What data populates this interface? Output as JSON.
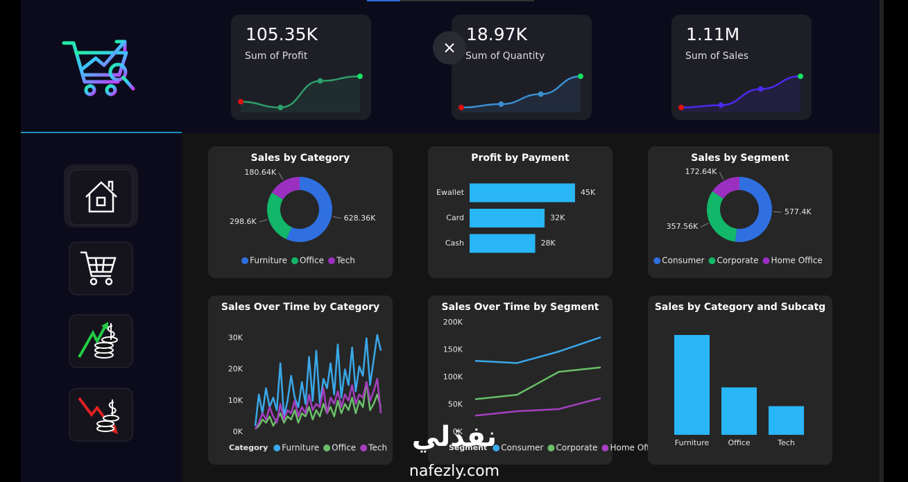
{
  "kpis": [
    {
      "value": "105.35K",
      "label": "Sum of Profit",
      "color": "#2e9e6a",
      "trend": [
        2.4,
        1.9,
        4.2,
        4.6
      ]
    },
    {
      "value": "18.97K",
      "label": "Sum of Quantity",
      "color": "#3a8fd0",
      "trend": [
        1,
        1.3,
        2.2,
        3.8
      ]
    },
    {
      "value": "1.11M",
      "label": "Sum of Sales",
      "color": "#4a2af0",
      "trend": [
        1,
        1.2,
        2.6,
        3.7
      ]
    }
  ],
  "chart_data": [
    {
      "type": "donut",
      "title": "Sales by Category",
      "categories": [
        "Furniture",
        "Office",
        "Tech"
      ],
      "values": [
        628360,
        298600,
        180640
      ],
      "value_labels": [
        "628.36K",
        "298.6K",
        "180.64K"
      ],
      "colors": [
        "#2f6fe0",
        "#12b76a",
        "#9b30c0"
      ]
    },
    {
      "type": "bar",
      "horizontal": true,
      "title": "Profit by Payment",
      "categories": [
        "Ewallet",
        "Card",
        "Cash"
      ],
      "values": [
        45000,
        32000,
        28000
      ],
      "value_labels": [
        "45K",
        "32K",
        "28K"
      ],
      "color": "#29b6f6"
    },
    {
      "type": "donut",
      "title": "Sales by Segment",
      "categories": [
        "Consumer",
        "Corporate",
        "Home Office"
      ],
      "values": [
        577400,
        357560,
        172640
      ],
      "value_labels": [
        "577.4K",
        "357.56K",
        "172.64K"
      ],
      "colors": [
        "#2f6fe0",
        "#12b76a",
        "#9b30c0"
      ]
    },
    {
      "type": "line",
      "title": "Sales Over Time by Category",
      "legend_title": "Category",
      "ylim": [
        0,
        35000
      ],
      "yticks": [
        {
          "value": 0,
          "label": "0K"
        },
        {
          "value": 10000,
          "label": "10K"
        },
        {
          "value": 20000,
          "label": "20K"
        },
        {
          "value": 30000,
          "label": "30K"
        }
      ],
      "series": [
        {
          "name": "Furniture",
          "color": "#3aa8ea",
          "values": [
            2000,
            12000,
            6000,
            14000,
            8000,
            11000,
            7000,
            22000,
            5000,
            10000,
            18000,
            11000,
            8000,
            16000,
            9000,
            24000,
            10000,
            26000,
            9000,
            17000,
            14000,
            22000,
            12000,
            28000,
            11000,
            20000,
            15000,
            27000,
            13000,
            21000,
            18000,
            30000,
            15000,
            23000,
            31000,
            26000
          ]
        },
        {
          "name": "Office",
          "color": "#6abf69",
          "values": [
            1000,
            2000,
            4000,
            3000,
            5000,
            2000,
            4000,
            6000,
            3000,
            5000,
            4000,
            7000,
            3000,
            6000,
            5000,
            8000,
            4000,
            7000,
            5000,
            9000,
            6000,
            8000,
            5000,
            10000,
            6000,
            9000,
            7000,
            11000,
            6000,
            10000,
            8000,
            16000,
            7000,
            9000,
            12000,
            8000
          ]
        },
        {
          "name": "Tech",
          "color": "#a63fc0",
          "values": [
            1000,
            3000,
            6000,
            4000,
            8000,
            5000,
            3000,
            9000,
            4000,
            7000,
            6000,
            10000,
            5000,
            8000,
            6000,
            12000,
            7000,
            9000,
            8000,
            14000,
            6000,
            11000,
            9000,
            13000,
            8000,
            12000,
            10000,
            15000,
            9000,
            12000,
            11000,
            16000,
            10000,
            13000,
            17000,
            6000
          ]
        }
      ]
    },
    {
      "type": "line",
      "title": "Sales Over Time by Segment",
      "legend_title": "Segment",
      "ylim": [
        0,
        200000
      ],
      "yticks": [
        {
          "value": 0,
          "label": "0K"
        },
        {
          "value": 50000,
          "label": "50K"
        },
        {
          "value": 100000,
          "label": "100K"
        },
        {
          "value": 150000,
          "label": "150K"
        },
        {
          "value": 200000,
          "label": "200K"
        }
      ],
      "series": [
        {
          "name": "Consumer",
          "color": "#3aa8ea",
          "values": [
            130000,
            126000,
            147000,
            173000
          ]
        },
        {
          "name": "Corporate",
          "color": "#6abf69",
          "values": [
            60000,
            68000,
            110000,
            118000
          ]
        },
        {
          "name": "Home Office",
          "color": "#a63fc0",
          "values": [
            30000,
            38000,
            42000,
            62000
          ]
        }
      ]
    },
    {
      "type": "bar",
      "horizontal": false,
      "title": "Sales by Category and Subcatg",
      "categories": [
        "Furniture",
        "Office",
        "Tech"
      ],
      "values": [
        628360,
        298600,
        180640
      ],
      "color": "#29b6f6"
    }
  ],
  "watermark": {
    "arabic": "نفذلي",
    "url": "nafezly.com"
  }
}
